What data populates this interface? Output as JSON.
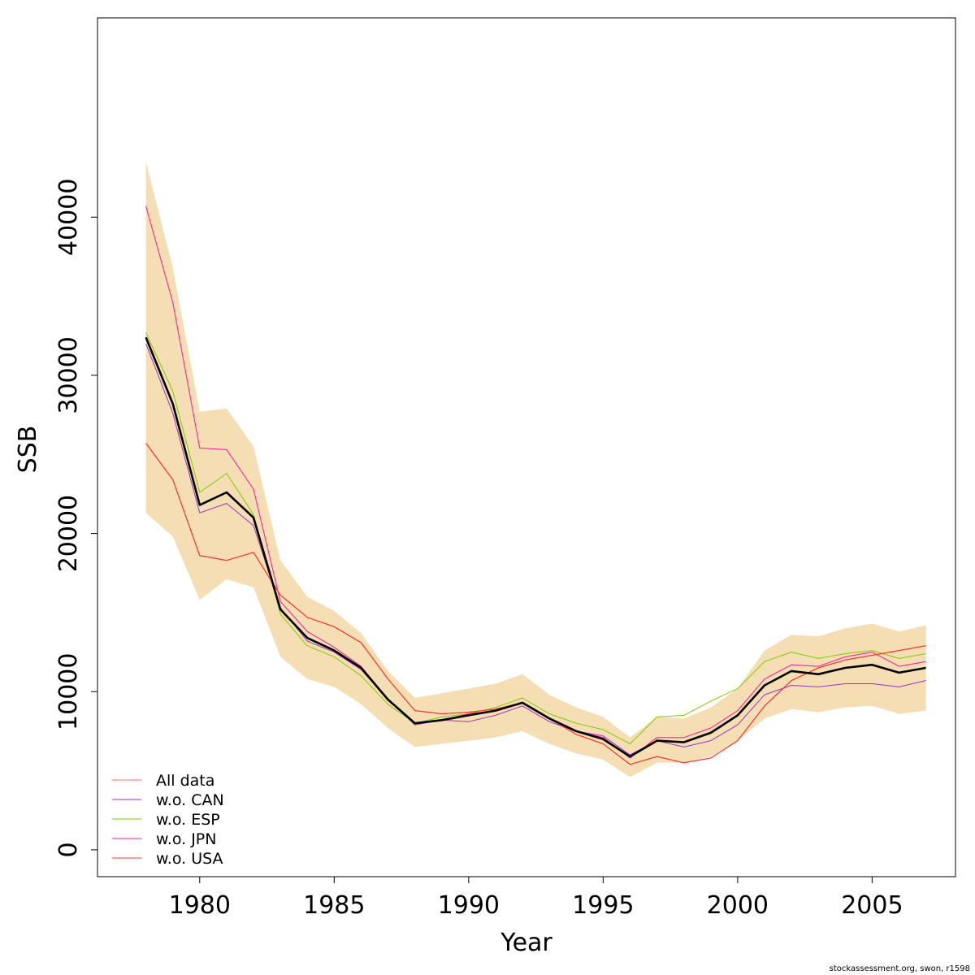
{
  "chart_data": {
    "type": "line",
    "xlabel": "Year",
    "ylabel": "SSB",
    "xlim": [
      1976.2,
      2008.1
    ],
    "ylim": [
      -1700,
      52600
    ],
    "x_ticks": [
      "1980",
      "1985",
      "1990",
      "1995",
      "2000",
      "2005"
    ],
    "y_ticks": [
      "0",
      "10000",
      "20000",
      "30000",
      "40000"
    ],
    "x": [
      1978,
      1979,
      1980,
      1981,
      1982,
      1983,
      1984,
      1985,
      1986,
      1987,
      1988,
      1989,
      1990,
      1991,
      1992,
      1993,
      1994,
      1995,
      1996,
      1997,
      1998,
      1999,
      2000,
      2001,
      2002,
      2003,
      2004,
      2005,
      2006,
      2007
    ],
    "band": {
      "color": "#F5DEB3",
      "upper": [
        43500,
        36800,
        27700,
        27900,
        25500,
        18300,
        16000,
        15100,
        13700,
        11300,
        9600,
        9900,
        10200,
        10500,
        11100,
        9800,
        9000,
        8400,
        7100,
        8400,
        8300,
        9000,
        10200,
        12600,
        13600,
        13500,
        14000,
        14300,
        13800,
        14200
      ],
      "lower": [
        21300,
        19800,
        15800,
        17100,
        16600,
        12200,
        10800,
        10300,
        9200,
        7700,
        6500,
        6700,
        6900,
        7100,
        7500,
        6700,
        6100,
        5700,
        4600,
        5500,
        5500,
        5900,
        6900,
        8300,
        8900,
        8700,
        9000,
        9100,
        8600,
        8800
      ]
    },
    "series": [
      {
        "name": "All data",
        "color": "#FF0000",
        "width": 1,
        "values": [
          25700,
          23400,
          18600,
          18300,
          18800,
          16100,
          14700,
          14100,
          13100,
          10800,
          8800,
          8600,
          8700,
          8900,
          9300,
          8300,
          7300,
          6700,
          5400,
          5900,
          5500,
          5800,
          6900,
          9100,
          10700,
          11500,
          12000,
          12300,
          12600,
          12900
        ]
      },
      {
        "name": "w.o. CAN",
        "color": "#9932CC",
        "width": 1,
        "values": [
          32000,
          27600,
          21300,
          21900,
          20500,
          15300,
          13200,
          12500,
          11400,
          9500,
          7900,
          8200,
          8100,
          8500,
          9100,
          8100,
          7500,
          7200,
          6000,
          6900,
          6500,
          6900,
          7900,
          9800,
          10400,
          10300,
          10500,
          10500,
          10300,
          10700
        ]
      },
      {
        "name": "w.o. ESP",
        "color": "#7CCD00",
        "width": 1,
        "values": [
          32700,
          29000,
          22600,
          23800,
          21200,
          14900,
          12900,
          12200,
          11000,
          9200,
          8000,
          8400,
          8600,
          9000,
          9600,
          8600,
          8000,
          7600,
          6700,
          8400,
          8500,
          9400,
          10200,
          11900,
          12500,
          12100,
          12400,
          12600,
          12100,
          12400
        ]
      },
      {
        "name": "w.o. JPN",
        "color": "#FF1493",
        "width": 1,
        "values": [
          40700,
          34600,
          25400,
          25300,
          22800,
          15700,
          13800,
          12800,
          11600,
          9500,
          8000,
          8200,
          8600,
          8800,
          9300,
          8300,
          7500,
          7100,
          5800,
          7100,
          7100,
          7700,
          8800,
          10800,
          11700,
          11600,
          12200,
          12500,
          11600,
          11900
        ]
      },
      {
        "name": "w.o. USA",
        "color": "#FF3030",
        "width": 1,
        "values": [
          25700,
          23400,
          18600,
          18300,
          18800,
          16100,
          14700,
          14100,
          13100,
          10800,
          8800,
          8600,
          8700,
          8900,
          9300,
          8300,
          7300,
          6700,
          5400,
          5900,
          5500,
          5800,
          6900,
          9100,
          10700,
          11500,
          12000,
          12300,
          12600,
          12900
        ]
      },
      {
        "name": "",
        "color": "#000000",
        "width": 2.6,
        "values": [
          32400,
          28200,
          21800,
          22600,
          21000,
          15200,
          13400,
          12600,
          11500,
          9500,
          8000,
          8200,
          8500,
          8800,
          9300,
          8300,
          7500,
          7000,
          5900,
          6900,
          6800,
          7400,
          8500,
          10400,
          11300,
          11100,
          11500,
          11700,
          11200,
          11500
        ]
      }
    ],
    "legend": {
      "placement": "bottom-left",
      "entries": [
        {
          "label": "All data",
          "color": "#FF6A6A"
        },
        {
          "label": "w.o. CAN",
          "color": "#9932CC"
        },
        {
          "label": "w.o. ESP",
          "color": "#7CCD00"
        },
        {
          "label": "w.o. JPN",
          "color": "#FF1493"
        },
        {
          "label": "w.o. USA",
          "color": "#FF3030"
        }
      ]
    },
    "grid": false
  },
  "footer": "stockassessment.org, swon, r1598"
}
